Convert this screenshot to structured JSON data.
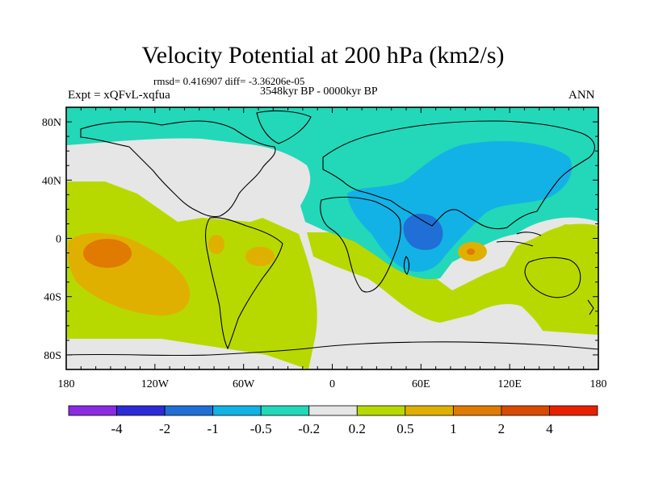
{
  "title": "Velocity Potential at 200 hPa (km2/s)",
  "stats": "rmsd= 0.416907  diff= -3.36206e-05",
  "period": "3548kyr BP - 0000kyr BP",
  "experiment": "Expt = xQFvL-xqfua",
  "season": "ANN",
  "lat_ticks": [
    {
      "lat": 80,
      "label": "80N"
    },
    {
      "lat": 40,
      "label": "40N"
    },
    {
      "lat": 0,
      "label": "0"
    },
    {
      "lat": -40,
      "label": "40S"
    },
    {
      "lat": -80,
      "label": "80S"
    }
  ],
  "lon_ticks": [
    {
      "lon": -180,
      "label": "180"
    },
    {
      "lon": -120,
      "label": "120W"
    },
    {
      "lon": -60,
      "label": "60W"
    },
    {
      "lon": 0,
      "label": "0"
    },
    {
      "lon": 60,
      "label": "60E"
    },
    {
      "lon": 120,
      "label": "120E"
    },
    {
      "lon": 180,
      "label": "180"
    }
  ],
  "colorbar": {
    "colors": [
      "#8a2be2",
      "#2b2bd8",
      "#1f6fd6",
      "#12b2e6",
      "#22d8b8",
      "#e6e6e6",
      "#b8d900",
      "#e0b000",
      "#e07a00",
      "#d84a00",
      "#e82000"
    ],
    "labels": [
      "-4",
      "-2",
      "-1",
      "-0.5",
      "-0.2",
      "0.2",
      "0.5",
      "1",
      "2",
      "4"
    ]
  },
  "colors": {
    "teal": "#22d8b8",
    "cyan": "#12b2e6",
    "blue": "#1f6fd6",
    "grey": "#e6e6e6",
    "lime": "#b8d900",
    "orange": "#e0b000",
    "darkorange": "#e07a00"
  }
}
